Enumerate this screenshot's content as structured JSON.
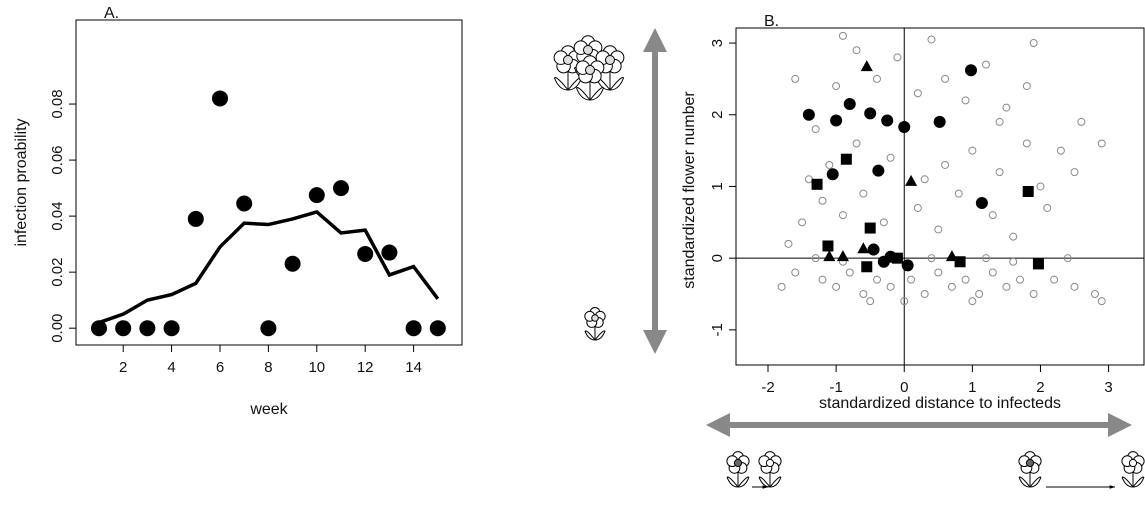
{
  "chart_data": [
    {
      "type": "scatter-line",
      "panel_label": "A.",
      "x_label": "week",
      "y_label": "infection proability",
      "x": [
        1,
        2,
        3,
        4,
        5,
        6,
        7,
        8,
        9,
        10,
        11,
        12,
        13,
        14,
        15
      ],
      "series": [
        {
          "marker": "circle",
          "color": "#000000",
          "values": [
            0,
            0,
            0,
            0,
            0.039,
            0.082,
            0.0445,
            0,
            0.023,
            0.0475,
            0.05,
            0.0265,
            0.027,
            0,
            0
          ]
        },
        {
          "marker": "line",
          "color": "#000000",
          "values": [
            0.002,
            0.005,
            0.01,
            0.012,
            0.016,
            0.029,
            0.0375,
            0.037,
            0.039,
            0.0415,
            0.034,
            0.035,
            0.019,
            0.022,
            0.0105
          ]
        }
      ],
      "xlim": [
        0.05,
        16
      ],
      "ylim": [
        -0.006,
        0.11
      ],
      "xticks": [
        2,
        4,
        6,
        8,
        10,
        12,
        14
      ],
      "yticks": [
        {
          "value": 0,
          "label": "0.00"
        },
        {
          "value": 0.02,
          "label": "0.02"
        },
        {
          "value": 0.04,
          "label": "0.04"
        },
        {
          "value": 0.06,
          "label": "0.06"
        },
        {
          "value": 0.08,
          "label": "0.08"
        }
      ]
    },
    {
      "type": "scatter",
      "panel_label": "B.",
      "x_label": "standardized distance to infecteds",
      "y_label": "standardized flower number",
      "hline": 0,
      "vline": 0,
      "series": [
        {
          "marker": "open-circle",
          "color": "#8a8a8a",
          "x": [
            -1.2,
            -1.0,
            -0.8,
            -0.6,
            -0.4,
            -0.2,
            0.1,
            0.3,
            0.5,
            0.7,
            0.9,
            1.1,
            1.3,
            1.5,
            1.7,
            1.9,
            2.2,
            2.5,
            2.8,
            -1.3,
            -0.9,
            0.4,
            1.2,
            1.6,
            2.4,
            -1.5,
            -1.2,
            -0.9,
            -0.6,
            -0.3,
            0.2,
            0.5,
            0.8,
            1.3,
            1.6,
            2.1,
            2.5,
            2.9,
            2.3,
            1.8,
            1.4,
            1.0,
            0.6,
            0.3,
            -0.2,
            -0.7,
            -1.1,
            -1.4,
            -1.3,
            -1.0,
            -0.7,
            -0.4,
            -0.1,
            0.2,
            0.6,
            0.9,
            1.2,
            1.5,
            1.8,
            1.4,
            0.4,
            1.9,
            -0.9,
            -1.6,
            2.6,
            2.0,
            0.0,
            -0.5,
            1.0,
            2.9,
            -1.8,
            -1.6,
            -1.7
          ],
          "y": [
            -0.3,
            -0.4,
            -0.2,
            -0.5,
            -0.3,
            -0.4,
            -0.3,
            -0.5,
            -0.2,
            -0.4,
            -0.3,
            -0.5,
            -0.2,
            -0.4,
            -0.3,
            -0.5,
            -0.3,
            -0.4,
            -0.5,
            0.0,
            -0.05,
            0.0,
            0.0,
            -0.05,
            0.0,
            0.5,
            0.8,
            0.6,
            0.9,
            0.5,
            0.7,
            0.4,
            0.9,
            0.6,
            0.3,
            0.7,
            1.2,
            1.6,
            1.5,
            1.6,
            1.2,
            1.5,
            1.3,
            1.1,
            1.4,
            1.6,
            1.3,
            1.1,
            1.8,
            2.4,
            2.9,
            2.5,
            2.8,
            2.3,
            2.5,
            2.2,
            2.7,
            2.1,
            2.4,
            1.9,
            3.05,
            3.0,
            3.1,
            2.5,
            1.9,
            1.0,
            -0.6,
            -0.6,
            -0.6,
            -0.6,
            -0.4,
            -0.2,
            0.2
          ]
        },
        {
          "marker": "circle",
          "color": "#000000",
          "x": [
            -1.4,
            -1.0,
            -0.8,
            -0.5,
            -0.25,
            0,
            0.52,
            0.98,
            -1.05,
            -0.38,
            1.14,
            -0.45,
            -0.2,
            0.05,
            -0.3
          ],
          "y": [
            2.0,
            1.92,
            2.15,
            2.02,
            1.92,
            1.83,
            1.9,
            2.62,
            1.17,
            1.22,
            0.77,
            0.12,
            0.02,
            -0.1,
            -0.05
          ]
        },
        {
          "marker": "square",
          "color": "#000000",
          "x": [
            -1.28,
            -0.85,
            -0.5,
            -1.12,
            -0.55,
            -0.1,
            0.82,
            1.82,
            1.97
          ],
          "y": [
            1.03,
            1.38,
            0.42,
            0.17,
            -0.12,
            0.0,
            -0.05,
            0.93,
            -0.08
          ]
        },
        {
          "marker": "triangle",
          "color": "#000000",
          "x": [
            -0.55,
            0.1,
            -1.1,
            -0.9,
            -0.6,
            0.7
          ],
          "y": [
            2.67,
            1.07,
            0.02,
            0.02,
            0.13,
            0.02
          ]
        }
      ],
      "xlim": [
        -2.47,
        3.52
      ],
      "ylim": [
        -1.49,
        3.21
      ],
      "xticks": [
        -2,
        -1,
        0,
        1,
        2,
        3
      ],
      "yticks": [
        -1,
        0,
        1,
        2,
        3
      ]
    }
  ]
}
